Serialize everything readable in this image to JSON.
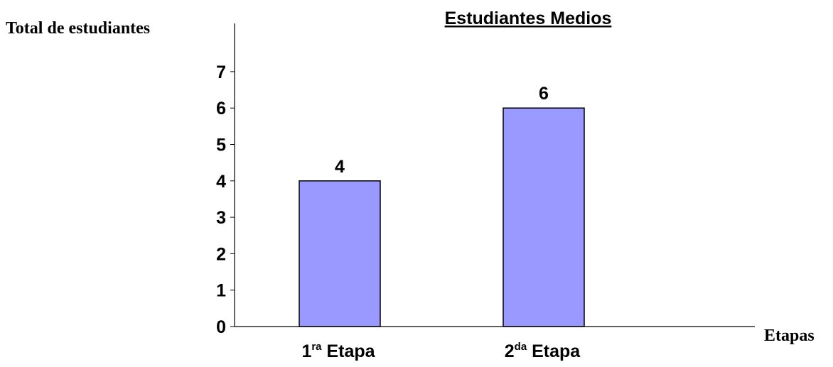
{
  "chart_data": {
    "type": "bar",
    "title": "Estudiantes Medios",
    "ylabel": "Total de estudiantes",
    "xlabel": "Etapas",
    "categories": [
      {
        "num": "1",
        "sup": "ra",
        "text": "Etapa"
      },
      {
        "num": "2",
        "sup": "da",
        "text": "Etapa"
      }
    ],
    "values": [
      4,
      6
    ],
    "value_labels": [
      "4",
      "6"
    ],
    "yticks": [
      "0",
      "1",
      "2",
      "3",
      "4",
      "5",
      "6",
      "7"
    ],
    "ylim": [
      0,
      8
    ],
    "grid": false,
    "colors": {
      "bar_fill": "#9999ff",
      "bar_stroke": "#000000",
      "axis": "#000000"
    }
  }
}
